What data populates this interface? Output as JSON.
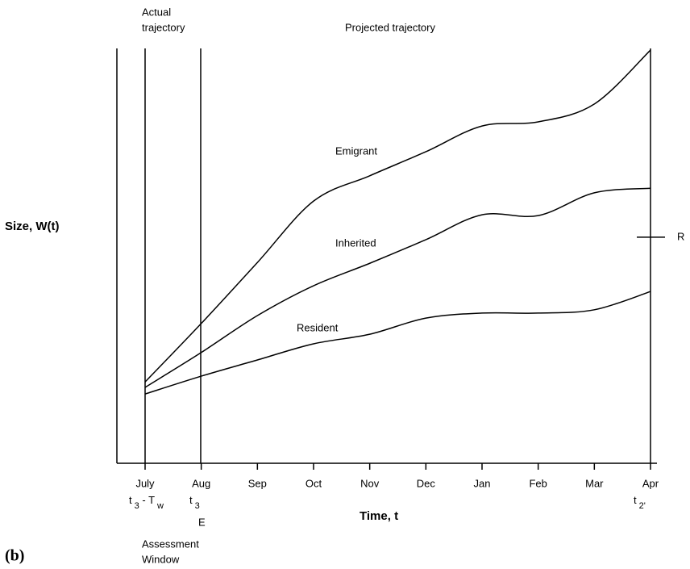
{
  "chart_data": {
    "type": "line",
    "panel_label": "(b)",
    "ylabel": "Size,  W(t)",
    "xlabel": "Time,  t",
    "annotations": {
      "actual": [
        "Actual",
        "trajectory"
      ],
      "projected": "Projected trajectory",
      "window": [
        "Assessment",
        "Window"
      ],
      "e": "E"
    },
    "time_marks": [
      {
        "main": "t",
        "sub": "3",
        "rest": " - T",
        "sub2": "w"
      },
      {
        "main": "t",
        "sub": "3"
      },
      {
        "main": "t",
        "sub": "2'"
      }
    ],
    "categories": [
      "July",
      "Aug",
      "Sep",
      "Oct",
      "Nov",
      "Dec",
      "Jan",
      "Feb",
      "Mar",
      "Apr"
    ],
    "series": [
      {
        "name": "Emigrant",
        "color": "#000000",
        "values": [
          19.6,
          33.7,
          48.4,
          63.2,
          69.3,
          75.1,
          81.3,
          82.3,
          86.6,
          99.6
        ]
      },
      {
        "name": "Inherited",
        "color": "#000000",
        "values": [
          18.3,
          26.7,
          35.6,
          42.8,
          48.2,
          53.9,
          59.9,
          59.7,
          65.2,
          66.3
        ]
      },
      {
        "name": "Resident",
        "color": "#000000",
        "values": [
          16.7,
          21.0,
          24.9,
          28.8,
          31.1,
          35.0,
          36.2,
          36.2,
          37.0,
          41.4
        ]
      }
    ],
    "marker": {
      "label": "R",
      "value": 54.5
    },
    "ylim": [
      0,
      100
    ]
  }
}
